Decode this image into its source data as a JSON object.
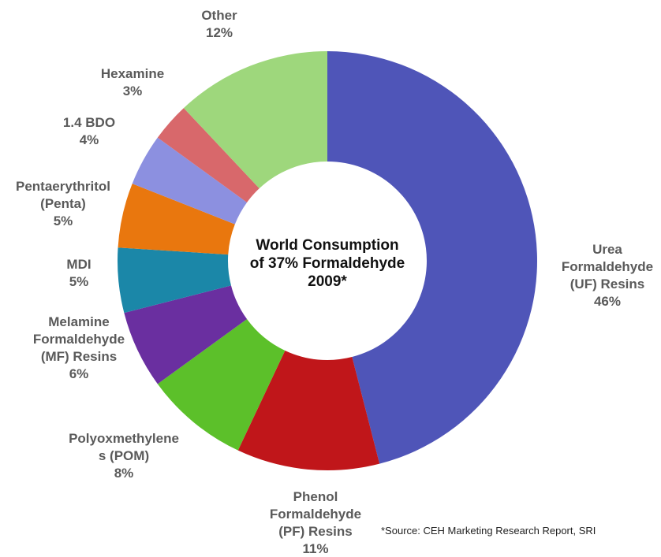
{
  "chart_data": {
    "type": "donut",
    "title": "World Consumption\nof 37% Formaldehyde\n2009*",
    "categories": [
      "Urea\nFormaldehyde\n(UF) Resins",
      "Phenol\nFormaldehyde\n(PF) Resins",
      "Polyoxmethylene\ns (POM)",
      "Melamine\nFormaldehyde\n(MF) Resins",
      "MDI",
      "Pentaerythritol\n(Penta)",
      "1.4 BDO",
      "Hexamine",
      "Other"
    ],
    "values": [
      46,
      11,
      8,
      6,
      5,
      5,
      4,
      3,
      12
    ],
    "value_labels": [
      "46%",
      "11%",
      "8%",
      "6%",
      "5%",
      "5%",
      "4%",
      "3%",
      "12%"
    ],
    "colors": [
      "#4f55b8",
      "#c0161a",
      "#5cc02a",
      "#6a2fa0",
      "#1b87a8",
      "#e9770e",
      "#8c90e0",
      "#d8686b",
      "#9ed77c"
    ],
    "source": "*Source: CEH Marketing Research Report, SRI"
  }
}
